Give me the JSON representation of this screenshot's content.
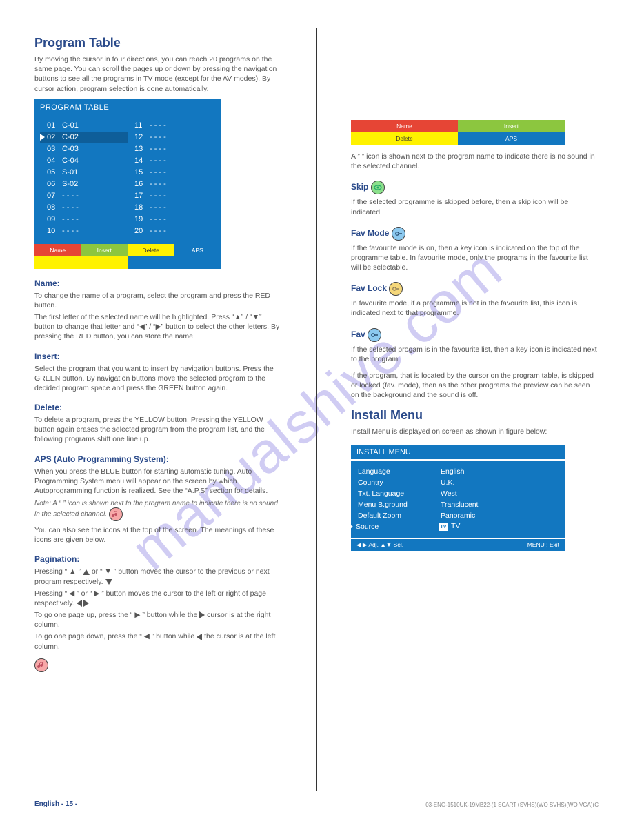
{
  "watermark": "manualshive.com",
  "divider_color": "#333333",
  "colors": {
    "brand_blue": "#1277c0",
    "red": "#e64535",
    "green": "#8cc63f",
    "yellow": "#fff200",
    "heading": "#2a4a8a",
    "body": "#555555"
  },
  "left": {
    "title": "Program Table",
    "intro": "By moving the cursor in four directions, you can reach 20 programs on the same page. You can scroll the pages up or down by pressing the navigation buttons to see all the programs in TV mode (except for the AV modes). By cursor action, program selection is done automatically.",
    "osd": {
      "header": "PROGRAM TABLE",
      "highlight_index": 1,
      "col1": [
        {
          "n": "01",
          "name": "C-01"
        },
        {
          "n": "02",
          "name": "C-02"
        },
        {
          "n": "03",
          "name": "C-03"
        },
        {
          "n": "04",
          "name": "C-04"
        },
        {
          "n": "05",
          "name": "S-01"
        },
        {
          "n": "06",
          "name": "S-02"
        },
        {
          "n": "07",
          "name": "- - - -"
        },
        {
          "n": "08",
          "name": "- - - -"
        },
        {
          "n": "09",
          "name": "- - - -"
        },
        {
          "n": "10",
          "name": "- - - -"
        }
      ],
      "col2": [
        {
          "n": "11",
          "name": "- - - -"
        },
        {
          "n": "12",
          "name": "- - - -"
        },
        {
          "n": "13",
          "name": "- - - -"
        },
        {
          "n": "14",
          "name": "- - - -"
        },
        {
          "n": "15",
          "name": "- - - -"
        },
        {
          "n": "16",
          "name": "- - - -"
        },
        {
          "n": "17",
          "name": "- - - -"
        },
        {
          "n": "18",
          "name": "- - - -"
        },
        {
          "n": "19",
          "name": "- - - -"
        },
        {
          "n": "20",
          "name": "- - - -"
        }
      ],
      "bars": {
        "red": "Name",
        "green": "Insert",
        "yellow": "Delete",
        "blue": "APS"
      }
    },
    "name": {
      "title": "Name:",
      "p1": "To change the name of a program, select the program and press the RED button.",
      "p2": "The first letter of the selected name will be highlighted. Press “▲” / “▼” button to change that letter and “◀” / “▶” button to select the other letters. By pressing the RED button, you can store the name."
    },
    "insert": {
      "title": "Insert:",
      "p1": "Select the program that you want to insert by navigation buttons. Press the GREEN button. By navigation buttons move the selected program to the decided program space and press the GREEN button again."
    },
    "delete": {
      "title": "Delete:",
      "p1": "To delete a program, press the YELLOW button. Pressing the YELLOW button again erases the selected program from the program list, and the following programs shift one line up."
    },
    "aps": {
      "title": "APS (Auto Programming System):",
      "p1": "When you press the BLUE button for starting automatic tuning, Auto Programming System menu will appear on the screen by which Autoprogramming function is realized. See the “A.P.S” section for details.",
      "note": "Note: A “ ” icon is shown next to the program name to indicate there is no sound in the selected channel.",
      "note2": "You can also see the icons at the top of the screen. The meanings of these icons are given below."
    },
    "pagination": {
      "title": "Pagination:",
      "seg1": "Pressing “ ▲ ”",
      "seg2": "or “ ▼ ” button moves the cursor to the previous or next program respectively.",
      "seg3": "Pressing “ ◀ ” or “ ▶ ” button moves the cursor to the left or right of page respectively.",
      "seg4a": "To go one page up, press the “ ▶ ” button while the",
      "seg4b": "cursor is at the right column.",
      "seg5a": "To go one page down, press the “ ◀ ” button while",
      "seg5b": "the cursor is at the left column."
    },
    "footer": "English - 15 -"
  },
  "right": {
    "mini_strip": {
      "red": "Name",
      "green": "Insert",
      "yellow": "Delete",
      "blue": "APS"
    },
    "d1": "A ” ” icon is shown next to the program name to indicate there is no sound in the selected channel.",
    "skip": {
      "title": "Skip ",
      "body": "If the selected programme is skipped before, then a skip icon will be indicated."
    },
    "favmode": {
      "title": "Fav Mode ",
      "body": "If the favourite mode is on, then a key icon is indicated on the top of the programme table. In favourite mode, only the programs in the favourite list will be selectable."
    },
    "favlock": {
      "title": "Fav Lock ",
      "body": "In favourite mode, if a programme is not in the favourite list, this icon is indicated next to that programme."
    },
    "fav": {
      "title": "Fav ",
      "body": "If the selected progam is in the favourite list, then a key icon is indicated next to the program."
    },
    "hint": "If the program, that is located by the cursor on the program table, is skipped or locked (fav. mode), then as the other programs the preview can be seen on the background and the sound is off.",
    "install": {
      "title": "Install Menu",
      "intro": "Install Menu is displayed on screen as shown in figure below:",
      "osd": {
        "header": "INSTALL MENU",
        "rows": [
          {
            "label": "Language",
            "value": "English"
          },
          {
            "label": "Country",
            "value": "U.K."
          },
          {
            "label": "Txt. Language",
            "value": "West"
          },
          {
            "label": "Menu B.ground",
            "value": "Translucent"
          },
          {
            "label": "Default Zoom",
            "value": "Panoramic"
          },
          {
            "label": "Source",
            "value": "TV",
            "tv": true
          }
        ],
        "footer_left": "◀ ▶ Adj.  ▲▼ Sel.",
        "footer_right": "MENU : Exit"
      }
    },
    "footer": "03-ENG-1510UK-19MB22-(1 SCART+SVHS)(WO SVHS)(WO VGA)(C"
  }
}
